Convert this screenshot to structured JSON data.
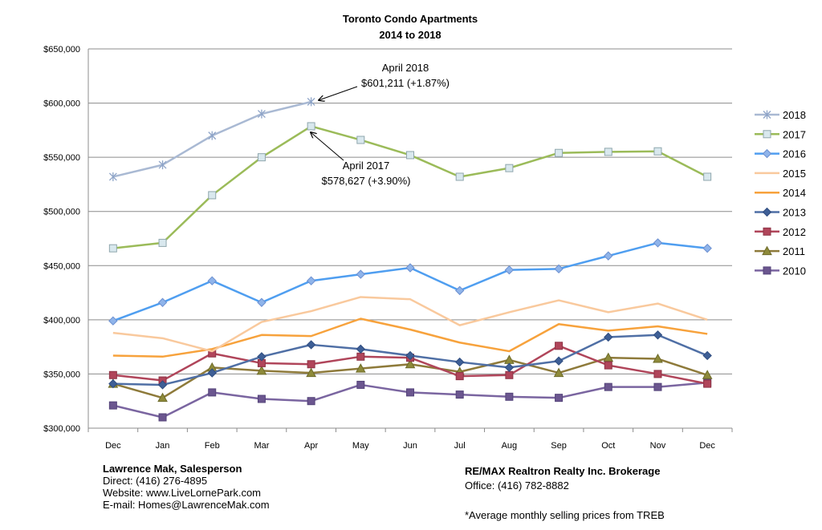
{
  "chart_data": {
    "type": "line",
    "title": "Toronto Condo Apartments",
    "subtitle": "2014 to 2018",
    "categories": [
      "Dec",
      "Jan",
      "Feb",
      "Mar",
      "Apr",
      "May",
      "Jun",
      "Jul",
      "Aug",
      "Sep",
      "Oct",
      "Nov",
      "Dec"
    ],
    "ylim": [
      300000,
      650000
    ],
    "yticks": [
      "$300,000",
      "$350,000",
      "$400,000",
      "$450,000",
      "$500,000",
      "$550,000",
      "$600,000",
      "$650,000"
    ],
    "ytick_values": [
      300000,
      350000,
      400000,
      450000,
      500000,
      550000,
      600000,
      650000
    ],
    "grid": true,
    "legend_position": "right",
    "series": [
      {
        "name": "2018",
        "color": "#a9b9d3",
        "marker": "star",
        "values": [
          532000,
          543000,
          570000,
          590000,
          601211,
          null,
          null,
          null,
          null,
          null,
          null,
          null,
          null
        ]
      },
      {
        "name": "2017",
        "color": "#9bbb59",
        "marker": "square-light",
        "values": [
          466000,
          471000,
          515000,
          550000,
          578627,
          566000,
          552000,
          532000,
          540000,
          554000,
          555000,
          555500,
          532000
        ]
      },
      {
        "name": "2016",
        "color": "#4f9ef0",
        "marker": "diamond-light",
        "values": [
          399000,
          416000,
          436000,
          416000,
          436000,
          442000,
          448000,
          427000,
          446000,
          447000,
          459000,
          471000,
          466000
        ]
      },
      {
        "name": "2015",
        "color": "#f9c99d",
        "marker": "none",
        "values": [
          388000,
          383000,
          371000,
          398000,
          408000,
          421000,
          419000,
          395000,
          407000,
          418000,
          407000,
          415000,
          400000
        ]
      },
      {
        "name": "2014",
        "color": "#f7a23c",
        "marker": "none",
        "values": [
          367000,
          366000,
          373000,
          386000,
          385000,
          401000,
          391000,
          379000,
          371000,
          396000,
          390000,
          394000,
          387000
        ]
      },
      {
        "name": "2013",
        "color": "#4f6fa5",
        "marker": "diamond",
        "values": [
          341000,
          340000,
          351000,
          366000,
          377000,
          373000,
          367000,
          361000,
          356000,
          362000,
          384000,
          386000,
          367000
        ]
      },
      {
        "name": "2012",
        "color": "#b0455a",
        "marker": "square",
        "values": [
          349000,
          344000,
          369000,
          360000,
          359000,
          366000,
          365000,
          348000,
          349000,
          376000,
          358000,
          350000,
          341000
        ]
      },
      {
        "name": "2011",
        "color": "#8e7a3a",
        "marker": "triangle",
        "values": [
          341000,
          328000,
          356000,
          353000,
          351000,
          355000,
          359000,
          352000,
          363000,
          351000,
          365000,
          364000,
          349000
        ]
      },
      {
        "name": "2010",
        "color": "#7a65a0",
        "marker": "square-dark",
        "values": [
          321000,
          310000,
          333000,
          327000,
          325000,
          340000,
          333000,
          331000,
          329000,
          328000,
          338000,
          338000,
          342000
        ]
      }
    ],
    "annotations": [
      {
        "lines": [
          "April 2018",
          "$601,211 (+1.87%)"
        ]
      },
      {
        "lines": [
          "April 2017",
          "$578,627 (+3.90%)"
        ]
      }
    ]
  },
  "footer": {
    "left": {
      "name": "Lawrence Mak, Salesperson",
      "direct": "Direct:  (416) 276-4895",
      "website": "Website:  www.LiveLornePark.com",
      "email": "E-mail:  Homes@LawrenceMak.com"
    },
    "right": {
      "company": "RE/MAX Realtron Realty Inc. Brokerage",
      "office": "Office: (416) 782-8882",
      "note": "*Average monthly selling prices from TREB"
    }
  }
}
